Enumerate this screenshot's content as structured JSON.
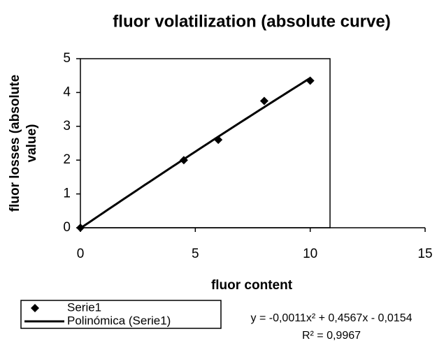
{
  "chart_data": {
    "type": "scatter",
    "title": "fluor volatilization (absolute curve)",
    "xlabel": "fluor content",
    "ylabel": [
      "fluor losses (absolute",
      "value)"
    ],
    "series": [
      {
        "name": "Serie1",
        "color": "#000000",
        "marker": "diamond",
        "x": [
          0,
          4.5,
          6,
          8,
          10
        ],
        "values": [
          0,
          2.0,
          2.6,
          3.75,
          4.35
        ]
      }
    ],
    "trendline": {
      "name": "Polinómica (Serie1)",
      "type": "polynomial",
      "order": 2,
      "color": "#000000",
      "equation": "y = -0,0011x² + 0,4567x - 0,0154",
      "r2": "R² = 0,9967"
    },
    "xlim": [
      0,
      15
    ],
    "xticks": [
      0,
      5,
      10,
      15
    ],
    "ylim": [
      0,
      5
    ],
    "yticks": [
      0,
      1,
      2,
      3,
      4,
      5
    ],
    "grid": false
  }
}
